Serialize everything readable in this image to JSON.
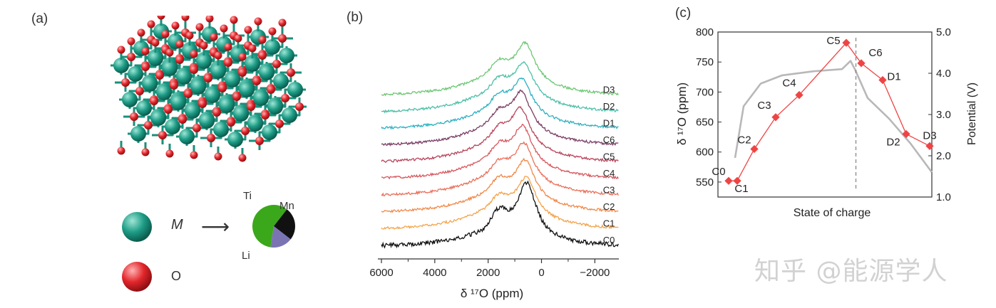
{
  "panels": {
    "a": {
      "label": "(a)",
      "legend": {
        "metal_label": "M",
        "arrow": "⟶",
        "oxygen_label": "O",
        "pie": {
          "slices": [
            {
              "name": "Li",
              "fraction": 0.58,
              "color": "#3aa81a"
            },
            {
              "name": "Ti",
              "fraction": 0.25,
              "color": "#111111"
            },
            {
              "name": "Mn",
              "fraction": 0.17,
              "color": "#7b74b3"
            }
          ]
        },
        "colors": {
          "metal": "#1d9c86",
          "oxygen": "#e2262b",
          "bond": "#1a8f7a"
        }
      }
    },
    "b": {
      "label": "(b)",
      "xlabel": "δ ¹⁷O (ppm)"
    },
    "c": {
      "label": "(c)",
      "xlabel": "State of charge",
      "ylabel_left": "δ ¹⁷O (ppm)",
      "ylabel_right": "Potential (V)"
    }
  },
  "chart_data": [
    {
      "type": "line",
      "panel": "b",
      "x_axis": {
        "ticks": [
          6000,
          4000,
          2000,
          0,
          -2000
        ],
        "tick_labels": [
          "6000",
          "4000",
          "2000",
          "0",
          "−2000"
        ],
        "xlim": [
          6000,
          -2900
        ],
        "reversed": true
      },
      "series": [
        {
          "name": "C0",
          "color": "#111111",
          "peak_ppm": 550,
          "peak_height": 1.0
        },
        {
          "name": "C1",
          "color": "#f4a34b",
          "peak_ppm": 550,
          "peak_height": 0.95
        },
        {
          "name": "C2",
          "color": "#f0894a",
          "peak_ppm": 600,
          "peak_height": 0.95
        },
        {
          "name": "C3",
          "color": "#e9705a",
          "peak_ppm": 650,
          "peak_height": 0.95
        },
        {
          "name": "C4",
          "color": "#d6575e",
          "peak_ppm": 700,
          "peak_height": 0.95
        },
        {
          "name": "C5",
          "color": "#b8465c",
          "peak_ppm": 780,
          "peak_height": 0.95
        },
        {
          "name": "C6",
          "color": "#7a3d64",
          "peak_ppm": 750,
          "peak_height": 0.95
        },
        {
          "name": "D1",
          "color": "#2bb0c2",
          "peak_ppm": 720,
          "peak_height": 0.85
        },
        {
          "name": "D2",
          "color": "#4dbfa8",
          "peak_ppm": 650,
          "peak_height": 0.85
        },
        {
          "name": "D3",
          "color": "#6dc774",
          "peak_ppm": 600,
          "peak_height": 0.95
        }
      ],
      "xlabel": "δ ¹⁷O (ppm)"
    },
    {
      "type": "line",
      "panel": "c",
      "y_left": {
        "ylim": [
          525,
          800
        ],
        "ticks": [
          550,
          600,
          650,
          700,
          750,
          800
        ]
      },
      "y_right": {
        "ylim": [
          1.0,
          5.0
        ],
        "ticks": [
          "1.0",
          "2.0",
          "3.0",
          "4.0",
          "5.0"
        ]
      },
      "series": [
        {
          "name": "",
          "color": "#ef4444",
          "points": [
            {
              "label": "C0",
              "x": 0.05,
              "y": 552
            },
            {
              "label": "C1",
              "x": 0.09,
              "y": 552
            },
            {
              "label": "C2",
              "x": 0.17,
              "y": 605
            },
            {
              "label": "C3",
              "x": 0.27,
              "y": 658
            },
            {
              "label": "C4",
              "x": 0.38,
              "y": 695
            },
            {
              "label": "C5",
              "x": 0.6,
              "y": 782
            },
            {
              "label": "C6",
              "x": 0.67,
              "y": 748
            },
            {
              "label": "D1",
              "x": 0.77,
              "y": 720
            },
            {
              "label": "D2",
              "x": 0.88,
              "y": 630
            },
            {
              "label": "D3",
              "x": 0.99,
              "y": 610
            }
          ]
        },
        {
          "name": "",
          "color": "#b8b8b8",
          "axis": "right",
          "points": [
            [
              0.08,
              1.95
            ],
            [
              0.12,
              3.2
            ],
            [
              0.2,
              3.75
            ],
            [
              0.3,
              3.95
            ],
            [
              0.45,
              4.05
            ],
            [
              0.58,
              4.1
            ],
            [
              0.62,
              4.3
            ],
            [
              0.64,
              4.1
            ],
            [
              0.7,
              3.4
            ],
            [
              0.8,
              2.9
            ],
            [
              0.9,
              2.3
            ],
            [
              1.0,
              1.6
            ]
          ]
        }
      ],
      "vline_x": 0.645,
      "xlabel": "State of charge",
      "ylabel": "δ ¹⁷O (ppm)"
    }
  ],
  "watermark": "知乎 @能源学人"
}
